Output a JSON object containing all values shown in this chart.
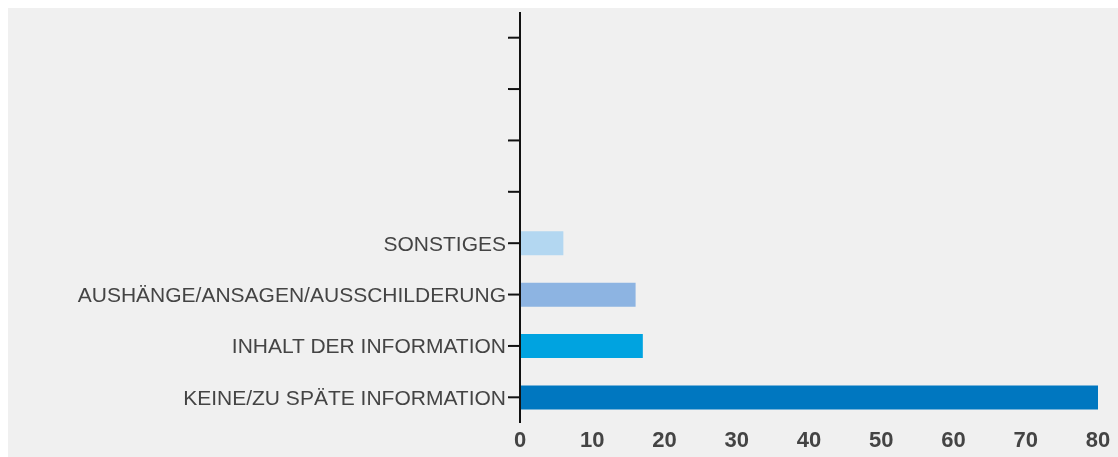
{
  "chart_data": {
    "type": "bar",
    "orientation": "horizontal",
    "categories": [
      null,
      null,
      null,
      null,
      "SONSTIGES",
      "AUSHÄNGE/ANSAGEN/AUSSCHILDERUNG",
      "INHALT DER INFORMATION",
      "KEINE/ZU SPÄTE INFORMATION"
    ],
    "values": [
      null,
      null,
      null,
      null,
      6,
      16,
      17,
      80
    ],
    "colors": [
      "#0077c0",
      "#0077c0",
      "#0077c0",
      "#0077c0",
      "#b3d7f1",
      "#8db4e2",
      "#00a3e0",
      "#0077c0"
    ],
    "xlim": [
      0,
      80
    ],
    "xticks": [
      0,
      10,
      20,
      30,
      40,
      50,
      60,
      70,
      80
    ],
    "grid": false,
    "legend": false
  }
}
